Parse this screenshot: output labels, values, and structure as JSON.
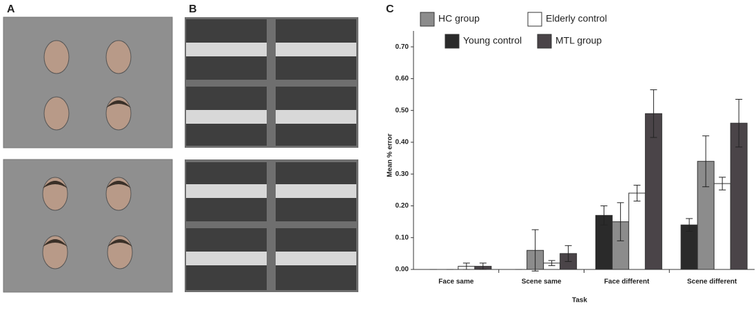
{
  "panels": [
    "A",
    "B"
  ],
  "chart_data": {
    "type": "bar",
    "panel": "C",
    "xlabel": "Task",
    "ylabel": "Mean % error",
    "categories": [
      "Face same",
      "Scene same",
      "Face different",
      "Scene different"
    ],
    "series": [
      {
        "name": "Young control",
        "color": "#2a2a2a",
        "values": [
          0.0,
          0.0,
          0.17,
          0.14
        ],
        "errors": [
          0.0,
          0.0,
          0.03,
          0.02
        ]
      },
      {
        "name": "HC group",
        "color": "#8c8c8c",
        "values": [
          0.0,
          0.06,
          0.15,
          0.34
        ],
        "errors": [
          0.0,
          0.065,
          0.06,
          0.08
        ]
      },
      {
        "name": "Elderly control",
        "color": "#ffffff",
        "values": [
          0.01,
          0.02,
          0.24,
          0.27
        ],
        "errors": [
          0.01,
          0.008,
          0.025,
          0.02
        ]
      },
      {
        "name": "MTL group",
        "color": "#4a4448",
        "values": [
          0.01,
          0.05,
          0.49,
          0.46
        ],
        "errors": [
          0.01,
          0.025,
          0.075,
          0.075
        ]
      }
    ],
    "ylim": [
      0,
      0.75
    ],
    "yticks": [
      {
        "value": 0,
        "label": "0.00"
      },
      {
        "value": 0.1,
        "label": "0.10"
      },
      {
        "value": 0.2,
        "label": "0.20"
      },
      {
        "value": 0.3,
        "label": "0.30"
      },
      {
        "value": 0.4,
        "label": "0.40"
      },
      {
        "value": 0.5,
        "label": "0.50"
      },
      {
        "value": 0.6,
        "label": "0.60"
      },
      {
        "value": 0.7,
        "label": "0.70"
      }
    ]
  }
}
